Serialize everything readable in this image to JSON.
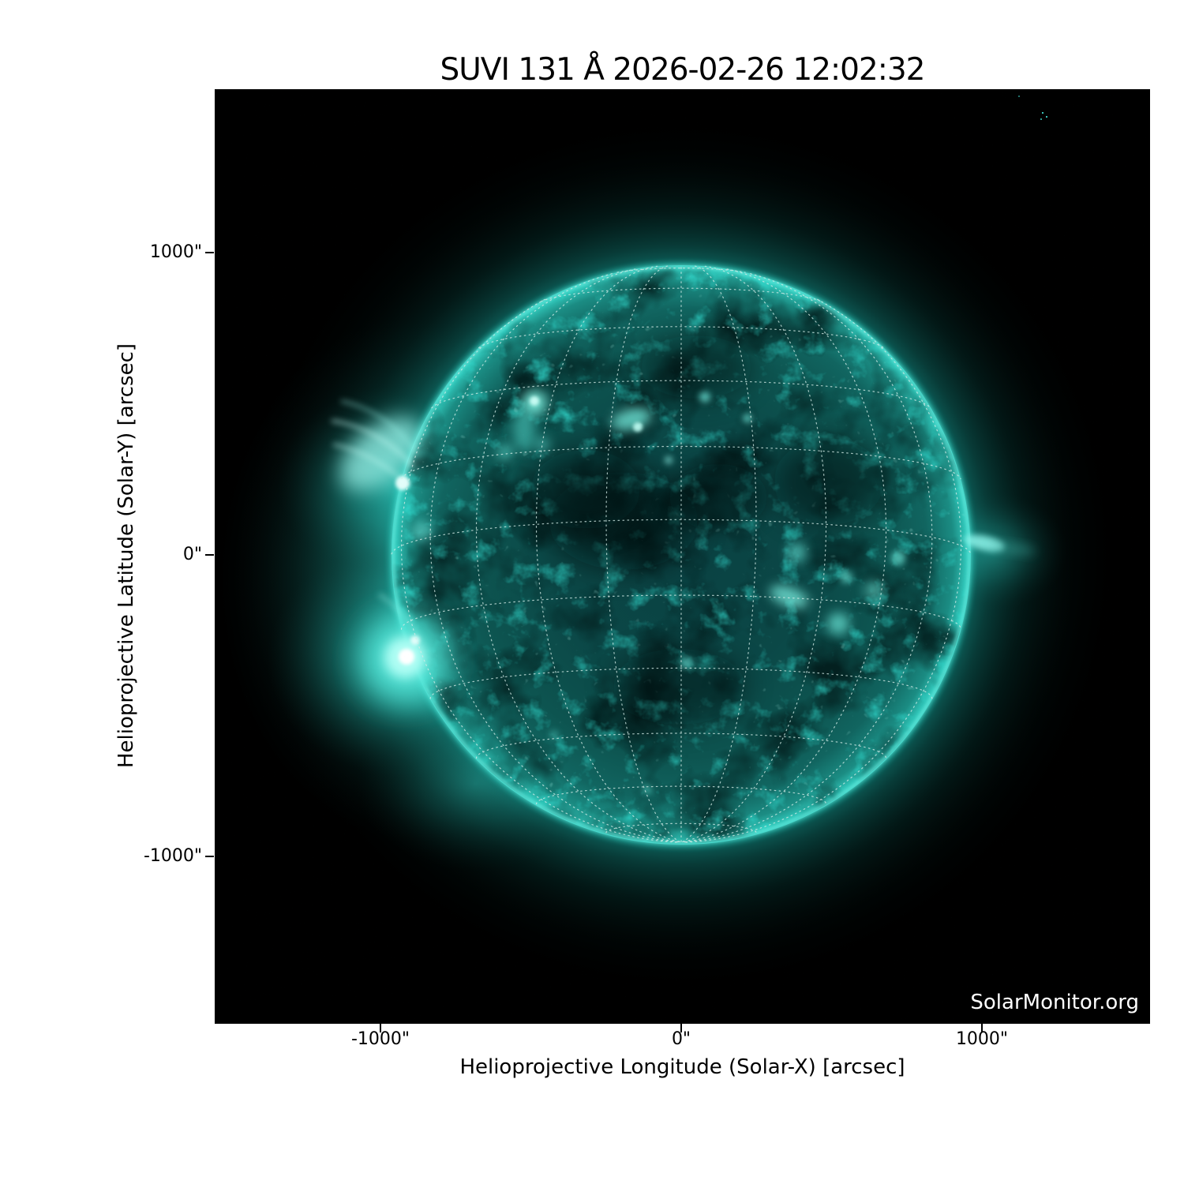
{
  "figure": {
    "title": "SUVI 131 Å 2026-02-26 12:02:32",
    "watermark": "SolarMonitor.org"
  },
  "axes": {
    "x": {
      "label": "Helioprojective Longitude (Solar-X) [arcsec]",
      "ticks": [
        "-1000\"",
        "0\"",
        "1000\""
      ]
    },
    "y": {
      "label": "Helioprojective Latitude (Solar-Y) [arcsec]",
      "ticks": [
        "1000\"",
        "0\"",
        "-1000\""
      ]
    }
  },
  "colors": {
    "background": "#000000",
    "page": "#ffffff",
    "accent_teal": "#2fd0c2",
    "bright_cyan": "#aefff4",
    "grid_dots": "#d4ece7",
    "text": "#000000",
    "watermark_text": "#ffffff"
  },
  "chart_data": {
    "type": "heatmap",
    "title": "SUVI 131 Å 2026-02-26 12:02:32",
    "xlabel": "Helioprojective Longitude (Solar-X) [arcsec]",
    "ylabel": "Helioprojective Latitude (Solar-Y) [arcsec]",
    "xlim": [
      -1550,
      1550
    ],
    "ylim": [
      -1550,
      1550
    ],
    "x_ticks_arcsec": [
      -1000,
      0,
      1000
    ],
    "y_ticks_arcsec": [
      -1000,
      0,
      1000
    ],
    "instrument": "SUVI",
    "wavelength_angstrom": 131,
    "observation_time": "2026-02-26 12:02:32",
    "colormap": "teal / cyan EUV intensity on black",
    "solar_disk": {
      "center_arcsec": [
        0,
        0
      ],
      "radius_arcsec": 960
    },
    "overlay": "dotted heliographic grid, 15 degree spacing, south pole tipped toward observer",
    "features": [
      "bright flaring active region on east limb south of equator with off-limb glow",
      "second active region with loop fan on east limb north of equator",
      "scattered active regions near disk center and north-central disk",
      "cluster of bright active regions west-southwest of disk center",
      "small bright jet on west limb near equator",
      "bright limb rim around full disk",
      "dark quiet-sun mottling across disk center"
    ],
    "legend_position": "none",
    "grid": "on (heliographic dotted overlay)"
  }
}
